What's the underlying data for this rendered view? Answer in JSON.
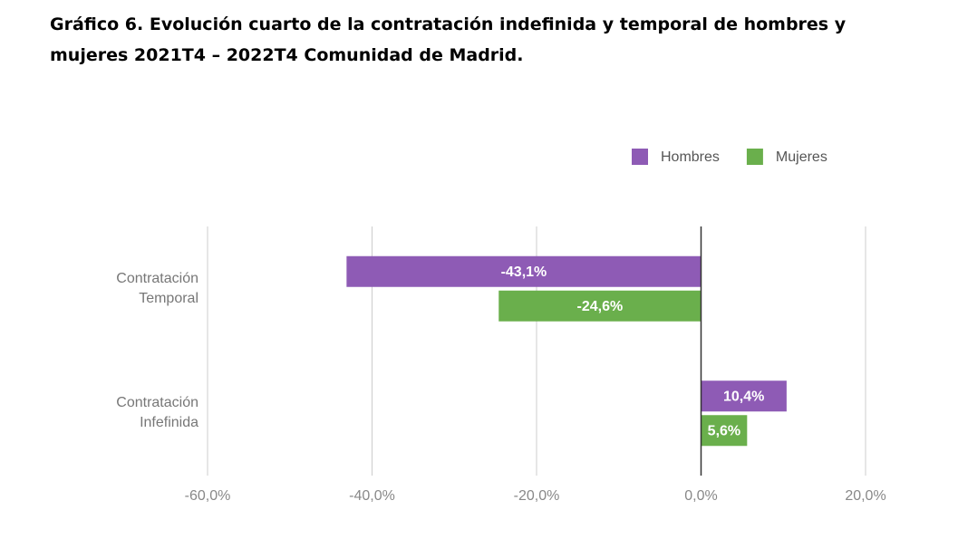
{
  "chart_data": {
    "type": "bar",
    "orientation": "horizontal",
    "title": "Gráfico 6. Evolución cuarto de la contratación indefinida y temporal de hombres y mujeres 2021T4 – 2022T4  Comunidad de Madrid.",
    "categories": [
      "Contratación Temporal",
      "Contratación Infefinida"
    ],
    "series": [
      {
        "name": "Hombres",
        "color": "#8e5bb5",
        "values": [
          -43.1,
          10.4
        ],
        "value_labels": [
          "-43,1%",
          "10,4%"
        ]
      },
      {
        "name": "Mujeres",
        "color": "#6aaf4c",
        "values": [
          -24.6,
          5.6
        ],
        "value_labels": [
          "-24,6%",
          "5,6%"
        ]
      }
    ],
    "xlim": [
      -60,
      20
    ],
    "xticks": [
      {
        "value": -60,
        "label": "-60,0%"
      },
      {
        "value": -40,
        "label": "-40,0%"
      },
      {
        "value": -20,
        "label": "-20,0%"
      },
      {
        "value": 0,
        "label": "0,0%"
      },
      {
        "value": 20,
        "label": "20,0%"
      }
    ],
    "grid": true,
    "legend": "top-right"
  }
}
